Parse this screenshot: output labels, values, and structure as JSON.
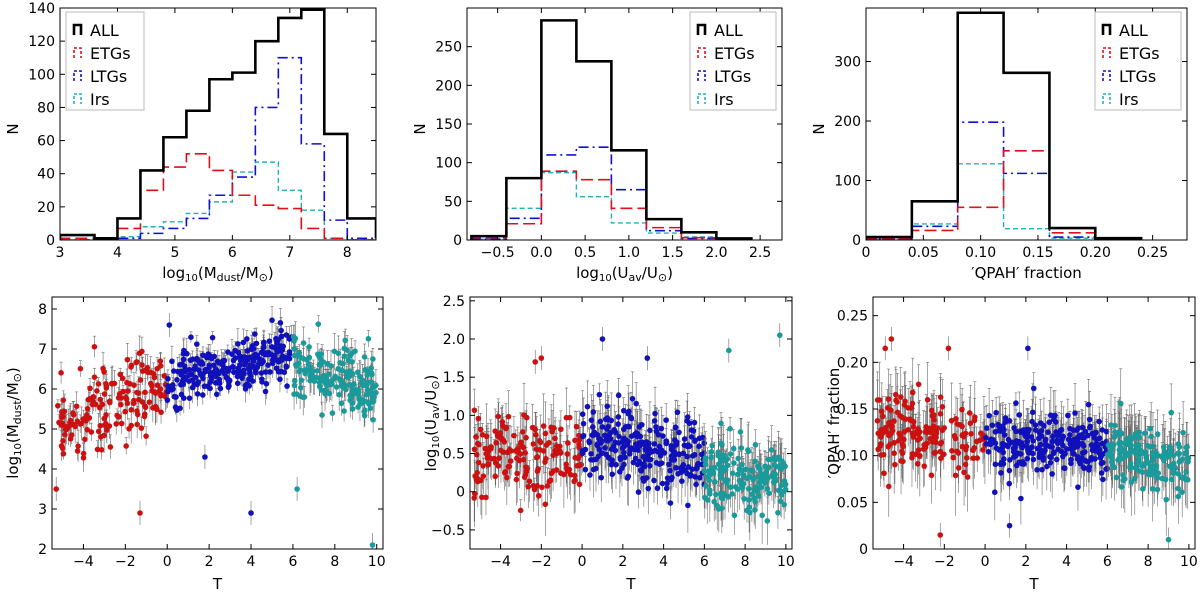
{
  "figure": {
    "colors": {
      "all": "#000000",
      "etg": "#e0101a",
      "ltg": "#1010cc",
      "irr": "#20b2b8",
      "scatter_etg": "#cc1111",
      "scatter_ltg": "#1111bb",
      "scatter_irr": "#1a9a9a"
    }
  },
  "chart_data": [
    {
      "id": "hist_mdust",
      "type": "bar",
      "title": "",
      "xlabel": "log10(Mdust/M⊙)",
      "ylabel": "N",
      "xlim": [
        3.0,
        8.5
      ],
      "ylim": [
        0,
        140
      ],
      "xticks": [
        3,
        4,
        5,
        6,
        7,
        8
      ],
      "yticks": [
        0,
        20,
        40,
        60,
        80,
        100,
        120,
        140
      ],
      "xtick_labels": [
        "3",
        "4",
        "5",
        "6",
        "7",
        "8"
      ],
      "ytick_labels": [
        "0",
        "20",
        "40",
        "60",
        "80",
        "100",
        "120",
        "140"
      ],
      "bin_edges": [
        3.0,
        3.6,
        4.0,
        4.4,
        4.8,
        5.2,
        5.6,
        6.0,
        6.4,
        6.8,
        7.2,
        7.6,
        8.0,
        8.5
      ],
      "series": [
        {
          "name": "ALL",
          "key": "all",
          "style": "solid",
          "values": [
            3,
            1,
            13,
            42,
            62,
            78,
            97,
            101,
            120,
            134,
            139,
            64,
            13,
            1
          ]
        },
        {
          "name": "ETGs",
          "key": "etg",
          "style": "longdash",
          "values": [
            1,
            1,
            7,
            30,
            44,
            52,
            42,
            27,
            21,
            19,
            7,
            1,
            0,
            0
          ]
        },
        {
          "name": "LTGs",
          "key": "ltg",
          "style": "dashdot",
          "values": [
            0,
            0,
            1,
            4,
            7,
            13,
            27,
            38,
            80,
            110,
            58,
            12,
            1,
            0
          ]
        },
        {
          "name": "Irs",
          "key": "irr",
          "style": "shortdash",
          "values": [
            0,
            0,
            2,
            8,
            11,
            16,
            23,
            41,
            47,
            30,
            18,
            1,
            0,
            0
          ]
        }
      ],
      "legend_position": "top-left"
    },
    {
      "id": "hist_uav",
      "type": "bar",
      "title": "",
      "xlabel": "log10(Uav/U⊙)",
      "ylabel": "N",
      "xlim": [
        -0.85,
        2.75
      ],
      "ylim": [
        0,
        300
      ],
      "xticks": [
        -0.5,
        0.0,
        0.5,
        1.0,
        1.5,
        2.0,
        2.5
      ],
      "yticks": [
        0,
        50,
        100,
        150,
        200,
        250
      ],
      "xtick_labels": [
        "−0.5",
        "0.0",
        "0.5",
        "1.0",
        "1.5",
        "2.0",
        "2.5"
      ],
      "ytick_labels": [
        "0",
        "50",
        "100",
        "150",
        "200",
        "250"
      ],
      "bin_edges": [
        -0.8,
        -0.4,
        0.0,
        0.4,
        0.8,
        1.2,
        1.6,
        2.0,
        2.4
      ],
      "series": [
        {
          "name": "ALL",
          "key": "all",
          "style": "solid",
          "values": [
            5,
            80,
            284,
            231,
            116,
            27,
            10,
            2
          ]
        },
        {
          "name": "ETGs",
          "key": "etg",
          "style": "longdash",
          "values": [
            3,
            21,
            89,
            78,
            41,
            16,
            3,
            1
          ]
        },
        {
          "name": "LTGs",
          "key": "ltg",
          "style": "dashdot",
          "values": [
            1,
            28,
            110,
            120,
            65,
            12,
            2,
            0
          ]
        },
        {
          "name": "Irs",
          "key": "irr",
          "style": "shortdash",
          "values": [
            1,
            41,
            87,
            56,
            22,
            9,
            4,
            1
          ]
        }
      ],
      "legend_position": "top-right"
    },
    {
      "id": "hist_qpah",
      "type": "bar",
      "title": "",
      "xlabel": "′QPAH′ fraction",
      "ylabel": "N",
      "xlim": [
        0.0,
        0.28
      ],
      "ylim": [
        0,
        390
      ],
      "xticks": [
        0.0,
        0.05,
        0.1,
        0.15,
        0.2,
        0.25
      ],
      "yticks": [
        0,
        100,
        200,
        300
      ],
      "xtick_labels": [
        "0",
        "0.05",
        "0.10",
        "0.15",
        "0.20",
        "0.25"
      ],
      "ytick_labels": [
        "0",
        "100",
        "200",
        "300"
      ],
      "bin_edges": [
        0.0,
        0.04,
        0.08,
        0.12,
        0.16,
        0.2,
        0.24
      ],
      "series": [
        {
          "name": "ALL",
          "key": "all",
          "style": "solid",
          "values": [
            5,
            65,
            382,
            281,
            20,
            3
          ]
        },
        {
          "name": "ETGs",
          "key": "etg",
          "style": "longdash",
          "values": [
            2,
            16,
            55,
            150,
            12,
            3
          ]
        },
        {
          "name": "LTGs",
          "key": "ltg",
          "style": "dashdot",
          "values": [
            2,
            23,
            198,
            112,
            5,
            1
          ]
        },
        {
          "name": "Irs",
          "key": "irr",
          "style": "shortdash",
          "values": [
            1,
            27,
            128,
            19,
            3,
            0
          ]
        }
      ],
      "legend_position": "top-right"
    },
    {
      "id": "scatter_mdust",
      "type": "scatter",
      "title": "",
      "xlabel": "T",
      "ylabel": "log10(Mdust/M⊙)",
      "xlim": [
        -5.5,
        10.3
      ],
      "ylim": [
        2.0,
        8.3
      ],
      "xticks": [
        -4,
        -2,
        0,
        2,
        4,
        6,
        8,
        10
      ],
      "yticks": [
        2,
        3,
        4,
        5,
        6,
        7,
        8
      ],
      "xtick_labels": [
        "−4",
        "−2",
        "0",
        "2",
        "4",
        "6",
        "8",
        "10"
      ],
      "ytick_labels": [
        "2",
        "3",
        "4",
        "5",
        "6",
        "7",
        "8"
      ],
      "series": [
        {
          "name": "ETGs",
          "key": "scatter_etg",
          "x_range": [
            -5.3,
            0.0
          ],
          "y_trend": [
            5.1,
            6.1
          ],
          "y_scatter": 0.65,
          "n": 165,
          "err": 0.35
        },
        {
          "name": "LTGs",
          "key": "scatter_ltg",
          "x_range": [
            0.0,
            6.0
          ],
          "y_trend": [
            6.2,
            6.9
          ],
          "y_scatter": 0.45,
          "n": 260,
          "err": 0.3
        },
        {
          "name": "Irs",
          "key": "scatter_irr",
          "x_range": [
            6.0,
            10.0
          ],
          "y_trend": [
            6.7,
            5.9
          ],
          "y_scatter": 0.6,
          "n": 170,
          "err": 0.35
        }
      ],
      "highlighted_points": [
        {
          "x": 0.1,
          "y": 7.6,
          "key": "scatter_ltg"
        },
        {
          "x": 4.0,
          "y": 2.9,
          "key": "scatter_ltg"
        },
        {
          "x": 1.8,
          "y": 4.3,
          "key": "scatter_ltg"
        },
        {
          "x": -1.3,
          "y": 2.9,
          "key": "scatter_etg"
        },
        {
          "x": 9.8,
          "y": 2.1,
          "key": "scatter_irr"
        },
        {
          "x": 6.2,
          "y": 3.5,
          "key": "scatter_irr"
        },
        {
          "x": -5.3,
          "y": 3.5,
          "key": "scatter_etg"
        }
      ]
    },
    {
      "id": "scatter_uav",
      "type": "scatter",
      "title": "",
      "xlabel": "T",
      "ylabel": "log10(Uav/U⊙)",
      "xlim": [
        -5.5,
        10.3
      ],
      "ylim": [
        -0.75,
        2.55
      ],
      "xticks": [
        -4,
        -2,
        0,
        2,
        4,
        6,
        8,
        10
      ],
      "yticks": [
        -0.5,
        0.0,
        0.5,
        1.0,
        1.5,
        2.0,
        2.5
      ],
      "xtick_labels": [
        "−4",
        "−2",
        "0",
        "2",
        "4",
        "6",
        "8",
        "10"
      ],
      "ytick_labels": [
        "−0.5",
        "0",
        "0.5",
        "1.0",
        "1.5",
        "2.0",
        "2.5"
      ],
      "series": [
        {
          "name": "ETGs",
          "key": "scatter_etg",
          "x_range": [
            -5.3,
            0.0
          ],
          "y_trend": [
            0.45,
            0.6
          ],
          "y_scatter": 0.35,
          "n": 165,
          "err": 0.35
        },
        {
          "name": "LTGs",
          "key": "scatter_ltg",
          "x_range": [
            0.0,
            6.0
          ],
          "y_trend": [
            0.7,
            0.4
          ],
          "y_scatter": 0.32,
          "n": 260,
          "err": 0.3
        },
        {
          "name": "Irs",
          "key": "scatter_irr",
          "x_range": [
            6.0,
            10.0
          ],
          "y_trend": [
            0.3,
            0.15
          ],
          "y_scatter": 0.3,
          "n": 170,
          "err": 0.3
        }
      ],
      "highlighted_points": [
        {
          "x": -2.0,
          "y": 1.75,
          "key": "scatter_etg"
        },
        {
          "x": -2.3,
          "y": 1.7,
          "key": "scatter_etg"
        },
        {
          "x": 1.0,
          "y": 2.0,
          "key": "scatter_ltg"
        },
        {
          "x": 9.7,
          "y": 2.05,
          "key": "scatter_irr"
        },
        {
          "x": 7.2,
          "y": 1.85,
          "key": "scatter_irr"
        },
        {
          "x": 3.2,
          "y": 1.75,
          "key": "scatter_ltg"
        }
      ]
    },
    {
      "id": "scatter_qpah",
      "type": "scatter",
      "title": "",
      "xlabel": "T",
      "ylabel": "′QPAH′ fraction",
      "xlim": [
        -5.5,
        10.3
      ],
      "ylim": [
        0.0,
        0.27
      ],
      "xticks": [
        -4,
        -2,
        0,
        2,
        4,
        6,
        8,
        10
      ],
      "yticks": [
        0.0,
        0.05,
        0.1,
        0.15,
        0.2,
        0.25
      ],
      "xtick_labels": [
        "−4",
        "−2",
        "0",
        "2",
        "4",
        "6",
        "8",
        "10"
      ],
      "ytick_labels": [
        "0",
        "0.05",
        "0.10",
        "0.15",
        "0.20",
        "0.25"
      ],
      "series": [
        {
          "name": "ETGs",
          "key": "scatter_etg",
          "x_range": [
            -5.3,
            0.0
          ],
          "y_trend": [
            0.13,
            0.12
          ],
          "y_scatter": 0.025,
          "n": 165,
          "err": 0.035
        },
        {
          "name": "LTGs",
          "key": "scatter_ltg",
          "x_range": [
            0.0,
            6.0
          ],
          "y_trend": [
            0.115,
            0.11
          ],
          "y_scatter": 0.022,
          "n": 260,
          "err": 0.025
        },
        {
          "name": "Irs",
          "key": "scatter_irr",
          "x_range": [
            6.0,
            10.0
          ],
          "y_trend": [
            0.105,
            0.09
          ],
          "y_scatter": 0.02,
          "n": 170,
          "err": 0.03
        }
      ],
      "highlighted_points": [
        {
          "x": -4.6,
          "y": 0.225,
          "key": "scatter_etg"
        },
        {
          "x": -4.9,
          "y": 0.215,
          "key": "scatter_etg"
        },
        {
          "x": -2.2,
          "y": 0.015,
          "key": "scatter_etg"
        },
        {
          "x": 9.0,
          "y": 0.01,
          "key": "scatter_irr"
        },
        {
          "x": 1.2,
          "y": 0.025,
          "key": "scatter_ltg"
        },
        {
          "x": 2.1,
          "y": 0.215,
          "key": "scatter_ltg"
        },
        {
          "x": -1.8,
          "y": 0.215,
          "key": "scatter_etg"
        }
      ]
    }
  ]
}
